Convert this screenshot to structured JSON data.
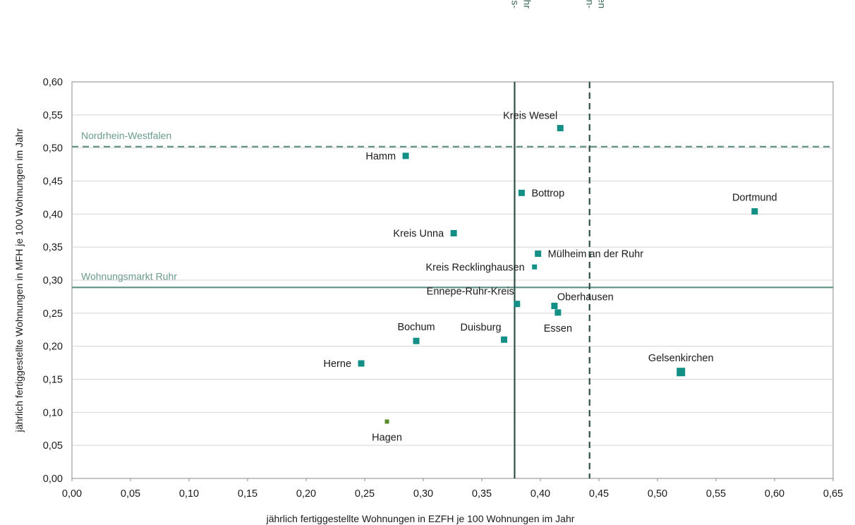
{
  "chart_data": {
    "type": "scatter",
    "xlabel": "jährlich fertiggestellte Wohnungen in EZFH je 100 Wohnungen im Jahr",
    "ylabel": "jährlich fertiggestellte Wohnungen in MFH je 100 Wohnungen im Jahr",
    "xlim": [
      0,
      0.65
    ],
    "ylim": [
      0,
      0.6
    ],
    "grid": "horizontal",
    "x_ticks": [
      "0,00",
      "0,05",
      "0,10",
      "0,15",
      "0,20",
      "0,25",
      "0,30",
      "0,35",
      "0,40",
      "0,45",
      "0,50",
      "0,55",
      "0,60",
      "0,65"
    ],
    "y_ticks": [
      "0,00",
      "0,05",
      "0,10",
      "0,15",
      "0,20",
      "0,25",
      "0,30",
      "0,35",
      "0,40",
      "0,45",
      "0,50",
      "0,55",
      "0,60"
    ],
    "reference_lines": [
      {
        "id": "nrw-h",
        "orientation": "horizontal",
        "value": 0.502,
        "label": "Nordrhein-Westfalen",
        "style": "dashed",
        "color": "#5e8f83",
        "label_color": "#6a9a8d"
      },
      {
        "id": "ruhr-h",
        "orientation": "horizontal",
        "value": 0.289,
        "label": "Wohnungsmarkt Ruhr",
        "style": "solid",
        "color": "#5e8f83",
        "label_color": "#6a9a8d"
      },
      {
        "id": "ruhr-v",
        "orientation": "vertical",
        "value": 0.378,
        "label": [
          "Wohnungs-",
          "markt Ruhr"
        ],
        "style": "solid",
        "color": "#2f4f45",
        "label_color": "#3f6a5c"
      },
      {
        "id": "nrw-v",
        "orientation": "vertical",
        "value": 0.442,
        "label": [
          "Nordrhein-",
          "Westfalen"
        ],
        "style": "dashed",
        "color": "#2f4f45",
        "label_color": "#3f6a5c"
      }
    ],
    "points": [
      {
        "name": "Kreis Wesel",
        "x": 0.417,
        "y": 0.53,
        "size": "medium",
        "color": "#138f86",
        "label_pos": "top-left"
      },
      {
        "name": "Hamm",
        "x": 0.285,
        "y": 0.488,
        "size": "medium",
        "color": "#138f86",
        "label_pos": "left"
      },
      {
        "name": "Bottrop",
        "x": 0.384,
        "y": 0.432,
        "size": "medium",
        "color": "#138f86",
        "label_pos": "right"
      },
      {
        "name": "Dortmund",
        "x": 0.583,
        "y": 0.404,
        "size": "medium",
        "color": "#138f86",
        "label_pos": "top"
      },
      {
        "name": "Kreis Unna",
        "x": 0.326,
        "y": 0.371,
        "size": "medium",
        "color": "#138f86",
        "label_pos": "left"
      },
      {
        "name": "Mülheim an der Ruhr",
        "x": 0.398,
        "y": 0.34,
        "size": "medium",
        "color": "#138f86",
        "label_pos": "right"
      },
      {
        "name": "Kreis Recklinghausen",
        "x": 0.395,
        "y": 0.32,
        "size": "small",
        "color": "#138f86",
        "label_pos": "left"
      },
      {
        "name": "Ennepe-Ruhr-Kreis",
        "x": 0.38,
        "y": 0.264,
        "size": "medium",
        "color": "#138f86",
        "label_pos": "top-left"
      },
      {
        "name": "Oberhausen",
        "x": 0.412,
        "y": 0.261,
        "size": "medium",
        "color": "#138f86",
        "label_pos": "right-up"
      },
      {
        "name": "Essen",
        "x": 0.415,
        "y": 0.251,
        "size": "medium",
        "color": "#138f86",
        "label_pos": "below"
      },
      {
        "name": "Bochum",
        "x": 0.294,
        "y": 0.208,
        "size": "medium",
        "color": "#138f86",
        "label_pos": "top"
      },
      {
        "name": "Duisburg",
        "x": 0.369,
        "y": 0.21,
        "size": "medium",
        "color": "#138f86",
        "label_pos": "top-left"
      },
      {
        "name": "Herne",
        "x": 0.247,
        "y": 0.174,
        "size": "medium",
        "color": "#138f86",
        "label_pos": "left"
      },
      {
        "name": "Gelsenkirchen",
        "x": 0.52,
        "y": 0.161,
        "size": "large",
        "color": "#138f86",
        "label_pos": "top"
      },
      {
        "name": "Hagen",
        "x": 0.269,
        "y": 0.086,
        "size": "tiny",
        "color": "#5b8c2a",
        "label_pos": "below"
      }
    ]
  }
}
